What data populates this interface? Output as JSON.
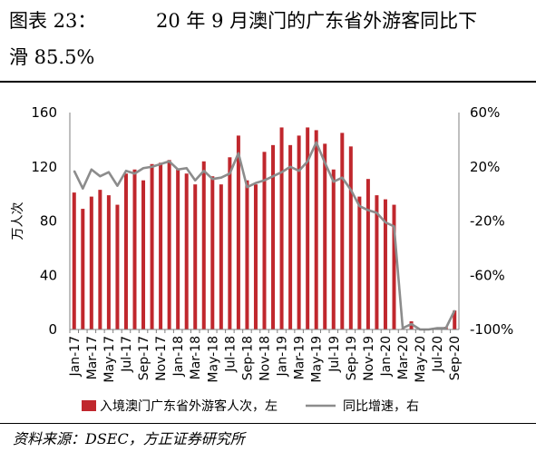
{
  "figure": {
    "label": "图表 23：",
    "title": "20 年 9 月澳门的广东省外游客同比下",
    "title_cont": "滑 85.5%",
    "source": "资料来源：DSEC，方正证券研究所"
  },
  "colors": {
    "bar": "#C0272D",
    "line": "#8C8C8C",
    "axis": "#7F7F7F"
  },
  "chart_data": {
    "type": "bar",
    "title": "",
    "xlabel": "",
    "ylabel": "万人次",
    "ylim": [
      0,
      160
    ],
    "y2lim": [
      -100,
      60
    ],
    "yticks": [
      "0",
      "40",
      "80",
      "120",
      "160"
    ],
    "y2ticks": [
      "-100%",
      "-60%",
      "-20%",
      "20%",
      "60%"
    ],
    "y2ticks_values": [
      -100,
      -60,
      -20,
      20,
      60
    ],
    "yticks_values": [
      0,
      40,
      80,
      120,
      160
    ],
    "grid": false,
    "legend_position": "bottom",
    "categories": [
      "Jan-17",
      "Feb-17",
      "Mar-17",
      "Apr-17",
      "May-17",
      "Jun-17",
      "Jul-17",
      "Aug-17",
      "Sep-17",
      "Oct-17",
      "Nov-17",
      "Dec-17",
      "Jan-18",
      "Feb-18",
      "Mar-18",
      "Apr-18",
      "May-18",
      "Jun-18",
      "Jul-18",
      "Aug-18",
      "Sep-18",
      "Oct-18",
      "Nov-18",
      "Dec-18",
      "Jan-19",
      "Feb-19",
      "Mar-19",
      "Apr-19",
      "May-19",
      "Jun-19",
      "Jul-19",
      "Aug-19",
      "Sep-19",
      "Oct-19",
      "Nov-19",
      "Dec-19",
      "Jan-20",
      "Feb-20",
      "Mar-20",
      "Apr-20",
      "May-20",
      "Jun-20",
      "Jul-20",
      "Aug-20",
      "Sep-20"
    ],
    "x_tick_labels": [
      "Jan-17",
      "Mar-17",
      "May-17",
      "Jul-17",
      "Sep-17",
      "Nov-17",
      "Jan-18",
      "Mar-18",
      "May-18",
      "Jul-18",
      "Sep-18",
      "Nov-18",
      "Jan-19",
      "Mar-19",
      "May-19",
      "Jul-19",
      "Sep-19",
      "Nov-19",
      "Jan-20",
      "Mar-20",
      "May-20",
      "Jul-20",
      "Sep-20"
    ],
    "series": [
      {
        "name": "入境澳门广东省外游客人次，左",
        "type": "bar",
        "axis": "left",
        "values": [
          101,
          89,
          98,
          103,
          99,
          92,
          115,
          118,
          110,
          122,
          123,
          125,
          118,
          115,
          107,
          124,
          113,
          107,
          127,
          143,
          110,
          107,
          131,
          136,
          149,
          136,
          143,
          149,
          147,
          137,
          118,
          145,
          135,
          98,
          111,
          99,
          96,
          92,
          0.5,
          6,
          0.2,
          0.3,
          0.5,
          2,
          14
        ]
      },
      {
        "name": "同比增速，右",
        "type": "line",
        "axis": "right",
        "values": [
          17,
          4,
          18,
          13,
          16,
          6,
          17,
          15,
          19,
          20,
          22,
          24,
          18,
          19,
          10,
          17,
          11,
          12,
          15,
          30,
          5,
          8,
          10,
          13,
          16,
          20,
          17,
          24,
          38,
          23,
          9,
          12,
          3,
          -9,
          -12,
          -14,
          -21,
          -24,
          -99,
          -96,
          -100,
          -100,
          -99,
          -99,
          -86
        ]
      }
    ]
  }
}
